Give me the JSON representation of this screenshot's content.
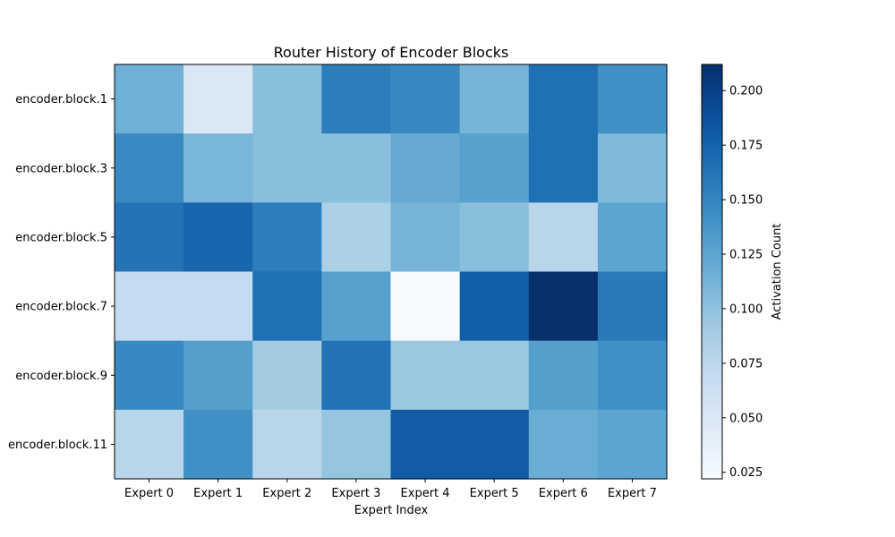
{
  "chart_data": {
    "type": "heatmap",
    "title": "Router History of Encoder Blocks",
    "xlabel": "Expert Index",
    "ylabel": "",
    "colorbar_label": "Activation Count",
    "colormap": "Blues",
    "vmin": 0.022,
    "vmax": 0.212,
    "colorbar_ticks": [
      0.025,
      0.05,
      0.075,
      0.1,
      0.125,
      0.15,
      0.175,
      0.2
    ],
    "colorbar_tick_labels": [
      "0.025",
      "0.050",
      "0.075",
      "0.100",
      "0.125",
      "0.150",
      "0.175",
      "0.200"
    ],
    "x_categories": [
      "Expert 0",
      "Expert 1",
      "Expert 2",
      "Expert 3",
      "Expert 4",
      "Expert 5",
      "Expert 6",
      "Expert 7"
    ],
    "y_categories": [
      "encoder.block.1",
      "encoder.block.3",
      "encoder.block.5",
      "encoder.block.7",
      "encoder.block.9",
      "encoder.block.11"
    ],
    "values": [
      [
        0.115,
        0.05,
        0.103,
        0.155,
        0.148,
        0.112,
        0.165,
        0.142
      ],
      [
        0.147,
        0.11,
        0.103,
        0.103,
        0.12,
        0.128,
        0.165,
        0.107
      ],
      [
        0.163,
        0.173,
        0.155,
        0.085,
        0.112,
        0.103,
        0.078,
        0.125
      ],
      [
        0.07,
        0.07,
        0.165,
        0.128,
        0.022,
        0.178,
        0.212,
        0.158
      ],
      [
        0.148,
        0.13,
        0.09,
        0.163,
        0.095,
        0.095,
        0.13,
        0.142
      ],
      [
        0.078,
        0.142,
        0.078,
        0.097,
        0.18,
        0.18,
        0.118,
        0.125
      ]
    ]
  }
}
